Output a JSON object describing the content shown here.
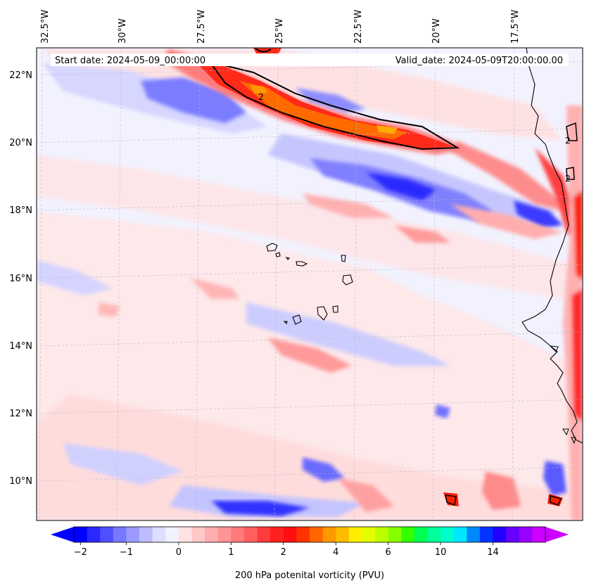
{
  "map": {
    "header": {
      "start_label": "Start date: 2024-05-09_00:00:00",
      "valid_label": "Valid_date: 2024-05-09T20:00:00.00"
    },
    "lon_labels": [
      "32.5°W",
      "30°W",
      "27.5°W",
      "25°W",
      "22.5°W",
      "20°W",
      "17.5°W"
    ],
    "lat_labels": [
      "22°N",
      "20°N",
      "18°N",
      "16°N",
      "14°N",
      "12°N",
      "10°N"
    ],
    "contour_labels": [
      "2",
      "2",
      "2"
    ],
    "colorbar": {
      "title": "200 hPa potenital vorticity (PVU)",
      "tick_labels": [
        "−2",
        "−1",
        "0",
        "1",
        "2",
        "4",
        "6",
        "10",
        "14"
      ],
      "colors": [
        "#0000ff",
        "#2828ff",
        "#4f4fff",
        "#7878ff",
        "#9a9aff",
        "#bcbcff",
        "#dedeff",
        "#f2f2ff",
        "#ffe3e3",
        "#ffc8c8",
        "#ffadad",
        "#ff9494",
        "#ff7a7a",
        "#ff5f5f",
        "#ff3c3c",
        "#ff2020",
        "#ff0f0f",
        "#ff3300",
        "#ff6600",
        "#ff9900",
        "#ffbb00",
        "#ffee00",
        "#e5ff00",
        "#bbff00",
        "#88ff00",
        "#33ff00",
        "#00ff55",
        "#00ff99",
        "#00ffcc",
        "#00e6ff",
        "#0088ff",
        "#0033ff",
        "#2200ff",
        "#6600ff",
        "#9900ff",
        "#cc00ff"
      ],
      "under_color": "#0000ff",
      "over_color": "#cc00ff"
    },
    "palette": {
      "background": "#f0f0ff",
      "light_red": "#ffe3e3",
      "mid_red": "#ff9a9a",
      "strong_red": "#ff2a1a",
      "orange": "#ff6a00",
      "light_blue": "#c8c8ff",
      "mid_blue": "#7878ff",
      "strong_blue": "#2020ff",
      "coast": "#000000"
    }
  }
}
